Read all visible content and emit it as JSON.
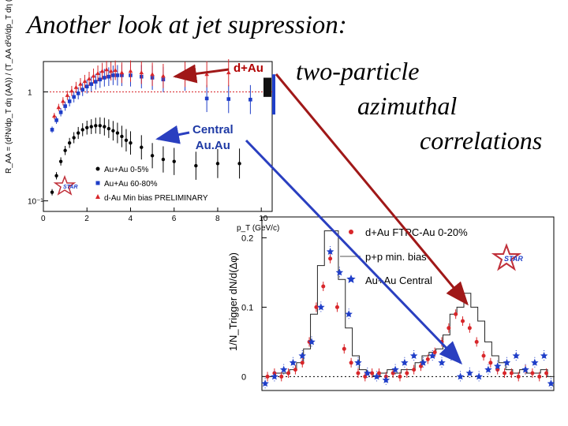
{
  "slide": {
    "title": "Another look at  jet supression:",
    "side_text": [
      "two-particle",
      "azimuthal",
      "correlations"
    ]
  },
  "annotations": {
    "dau_label": "d+Au",
    "central_label_1": "Central",
    "central_label_2": "Au.Au"
  },
  "colors": {
    "red": "#d8262a",
    "blue": "#1f3ec8",
    "black": "#000000",
    "arrow_red": "#a01818",
    "arrow_blue": "#2a3fc0",
    "star_logo": "#c0303a"
  },
  "chart_data": [
    {
      "type": "scatter",
      "ylabel": "R_AA = (d²N/dp_T dη (AA)) / (T_AA d²σ/dp_T dη (pp))",
      "xlabel": "p_T (GeV/c)",
      "xlim": [
        0,
        10.5
      ],
      "ylim_log": [
        0.08,
        1.9
      ],
      "yscale": "log",
      "x_ticks": [
        0,
        2,
        4,
        6,
        8,
        10
      ],
      "y_tick_labels": [
        {
          "value": 1,
          "label": "1"
        },
        {
          "value": 0.1,
          "label": "10⁻¹"
        }
      ],
      "reference_line_y": 1,
      "legend": {
        "placement": "bottom-left",
        "entries": [
          "Au+Au 0-5%",
          "Au+Au 60-80%",
          "d-Au Min bias PRELIMINARY"
        ]
      },
      "series": [
        {
          "name": "Au+Au 0-5%",
          "marker": "circle",
          "color": "black",
          "x": [
            0.4,
            0.6,
            0.8,
            1.0,
            1.2,
            1.4,
            1.6,
            1.8,
            2.0,
            2.2,
            2.4,
            2.6,
            2.8,
            3.0,
            3.2,
            3.4,
            3.6,
            3.8,
            4.0,
            4.5,
            5.0,
            5.5,
            6.0,
            7.0,
            8.0,
            9.0
          ],
          "y": [
            0.12,
            0.17,
            0.23,
            0.29,
            0.34,
            0.38,
            0.42,
            0.45,
            0.47,
            0.48,
            0.49,
            0.49,
            0.48,
            0.46,
            0.44,
            0.42,
            0.39,
            0.36,
            0.34,
            0.31,
            0.26,
            0.24,
            0.23,
            0.21,
            0.22,
            0.22
          ]
        },
        {
          "name": "Au+Au 60-80%",
          "marker": "square",
          "color": "blue",
          "x": [
            0.4,
            0.6,
            0.8,
            1.0,
            1.2,
            1.4,
            1.6,
            1.8,
            2.0,
            2.2,
            2.4,
            2.6,
            2.8,
            3.0,
            3.2,
            3.4,
            3.6,
            4.0,
            4.5,
            5.0,
            5.5,
            6.5,
            7.5,
            8.5,
            9.5
          ],
          "y": [
            0.45,
            0.55,
            0.65,
            0.74,
            0.82,
            0.9,
            0.97,
            1.05,
            1.12,
            1.18,
            1.24,
            1.3,
            1.35,
            1.38,
            1.42,
            1.42,
            1.42,
            1.42,
            1.38,
            1.35,
            1.3,
            1.35,
            0.87,
            0.86,
            0.85
          ]
        },
        {
          "name": "d-Au Min bias PRELIMINARY",
          "marker": "triangle",
          "color": "red",
          "x": [
            0.5,
            0.7,
            0.9,
            1.1,
            1.3,
            1.5,
            1.7,
            1.9,
            2.1,
            2.3,
            2.5,
            2.7,
            2.9,
            3.1,
            3.3,
            3.6,
            4.0,
            4.5,
            5.0,
            5.5,
            6.5,
            7.5,
            8.5
          ],
          "y": [
            0.6,
            0.72,
            0.82,
            0.93,
            1.02,
            1.1,
            1.18,
            1.25,
            1.32,
            1.4,
            1.48,
            1.55,
            1.6,
            1.55,
            1.58,
            1.5,
            1.55,
            1.5,
            1.45,
            1.4,
            1.45,
            1.45,
            1.5
          ]
        }
      ]
    },
    {
      "type": "scatter",
      "ylabel": "1/N_Trigger dN/d(Δφ)",
      "xlim": [
        -1.57,
        4.71
      ],
      "ylim": [
        -0.02,
        0.23
      ],
      "y_ticks": [
        0,
        0.1,
        0.2
      ],
      "reference_line_y": 0,
      "legend": {
        "placement": "top-right",
        "entries": [
          "d+Au FTPC-Au 0-20%",
          "p+p min. bias",
          "Au+Au Central"
        ]
      },
      "series": [
        {
          "name": "p+p min. bias",
          "marker": "step-histogram",
          "color": "black",
          "x": [
            -1.5,
            -1.35,
            -1.2,
            -1.05,
            -0.9,
            -0.75,
            -0.6,
            -0.45,
            -0.3,
            -0.15,
            0.0,
            0.15,
            0.3,
            0.45,
            0.6,
            0.75,
            0.9,
            1.05,
            1.2,
            1.35,
            1.5,
            1.65,
            1.8,
            1.95,
            2.1,
            2.25,
            2.4,
            2.55,
            2.7,
            2.85,
            3.0,
            3.15,
            3.3,
            3.45,
            3.6,
            3.75,
            3.9,
            4.05,
            4.2,
            4.35,
            4.5,
            4.65
          ],
          "y": [
            0.0,
            0.0,
            0.005,
            0.005,
            0.01,
            0.02,
            0.04,
            0.09,
            0.16,
            0.21,
            0.21,
            0.14,
            0.07,
            0.03,
            0.01,
            0.005,
            0.0,
            0.005,
            0.01,
            0.005,
            0.01,
            0.01,
            0.02,
            0.03,
            0.035,
            0.04,
            0.06,
            0.09,
            0.1,
            0.12,
            0.1,
            0.08,
            0.05,
            0.03,
            0.02,
            0.01,
            0.005,
            0.01,
            0.005,
            0.005,
            0.01,
            0.0
          ]
        },
        {
          "name": "d+Au FTPC-Au 0-20%",
          "marker": "circle",
          "color": "red",
          "x": [
            -1.45,
            -1.3,
            -1.15,
            -1.0,
            -0.85,
            -0.7,
            -0.55,
            -0.4,
            -0.25,
            -0.1,
            0.05,
            0.2,
            0.35,
            0.5,
            0.65,
            0.8,
            0.95,
            1.1,
            1.25,
            1.4,
            1.55,
            1.7,
            1.85,
            2.0,
            2.15,
            2.3,
            2.45,
            2.6,
            2.75,
            2.9,
            3.05,
            3.2,
            3.35,
            3.5,
            3.65,
            3.8,
            3.95,
            4.1,
            4.25,
            4.4,
            4.55
          ],
          "y": [
            0.0,
            0.005,
            0.0,
            0.005,
            0.01,
            0.02,
            0.05,
            0.1,
            0.13,
            0.17,
            0.1,
            0.04,
            0.02,
            0.005,
            0.0,
            0.005,
            0.005,
            0.0,
            0.005,
            0.0,
            0.005,
            0.01,
            0.015,
            0.025,
            0.035,
            0.05,
            0.07,
            0.09,
            0.08,
            0.07,
            0.05,
            0.03,
            0.02,
            0.01,
            0.005,
            0.005,
            0.0,
            0.01,
            0.005,
            0.0,
            0.005
          ]
        },
        {
          "name": "Au+Au Central",
          "marker": "star",
          "color": "blue",
          "x": [
            -1.5,
            -1.3,
            -1.1,
            -0.9,
            -0.7,
            -0.5,
            -0.3,
            -0.1,
            0.1,
            0.3,
            0.5,
            0.7,
            0.9,
            1.1,
            1.3,
            1.5,
            1.7,
            1.9,
            2.1,
            2.3,
            2.5,
            2.7,
            2.9,
            3.1,
            3.3,
            3.5,
            3.7,
            3.9,
            4.1,
            4.3,
            4.5,
            4.65
          ],
          "y": [
            -0.01,
            0.0,
            0.01,
            0.02,
            0.03,
            0.05,
            0.1,
            0.18,
            0.15,
            0.09,
            0.02,
            0.005,
            0.0,
            -0.005,
            0.01,
            0.02,
            0.03,
            0.02,
            0.03,
            0.02,
            0.03,
            0.0,
            0.005,
            0.0,
            0.01,
            0.015,
            0.02,
            0.03,
            0.01,
            0.02,
            0.03,
            -0.01
          ]
        }
      ]
    }
  ]
}
